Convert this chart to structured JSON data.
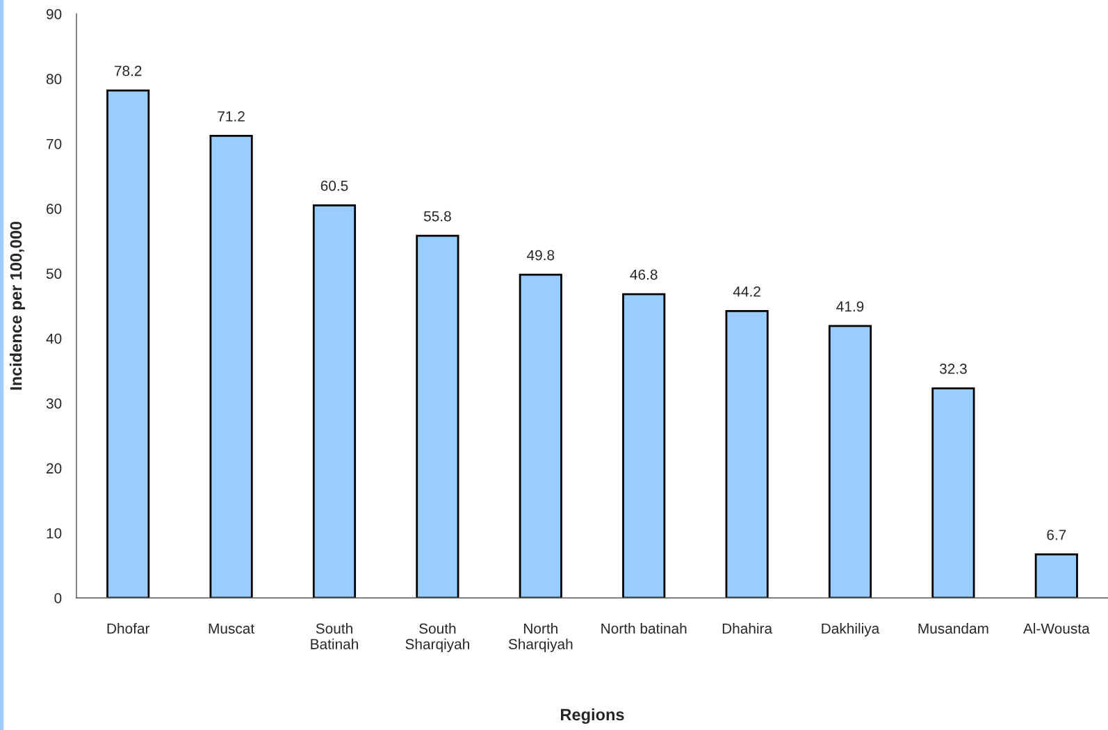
{
  "chart_data": {
    "type": "bar",
    "xlabel": "Regions",
    "ylabel": "Incidence per 100,000",
    "categories": [
      "Dhofar",
      "Muscat",
      "South\nBatinah",
      "South\nSharqiyah",
      "North\nSharqiyah",
      "North batinah",
      "Dhahira",
      "Dakhiliya",
      "Musandam",
      "Al-Wousta"
    ],
    "values": [
      78.2,
      71.2,
      60.5,
      55.8,
      49.8,
      46.8,
      44.2,
      41.9,
      32.3,
      6.7
    ],
    "color": "#99ccff",
    "ylim": [
      0,
      90
    ],
    "yticks": [
      0,
      10,
      20,
      30,
      40,
      50,
      60,
      70,
      80,
      90
    ],
    "grid": false,
    "legend": false,
    "data_labels": true
  }
}
